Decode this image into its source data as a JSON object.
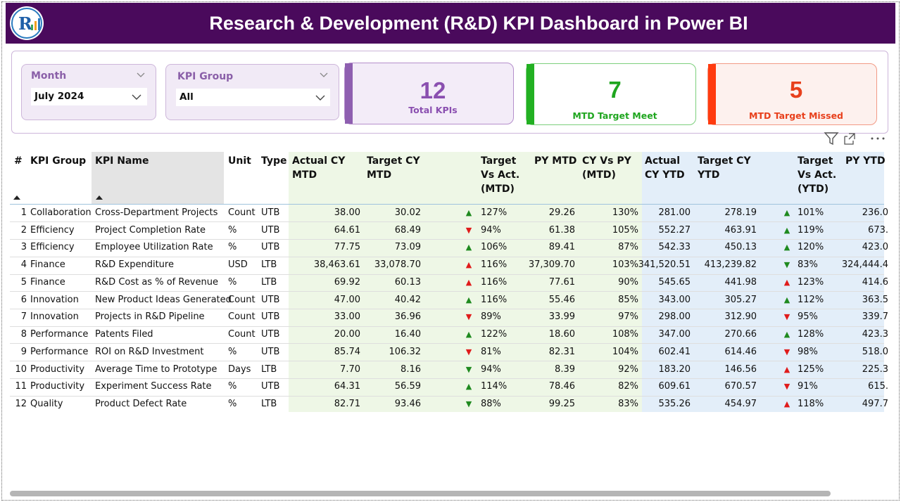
{
  "header": {
    "title": "Research & Development (R&D) KPI Dashboard in Power BI"
  },
  "filters": [
    {
      "label": "Month",
      "value": "July 2024"
    },
    {
      "label": "KPI Group",
      "value": "All"
    }
  ],
  "cards": [
    {
      "value": 12,
      "label": "Total KPIs",
      "color": "#8a4fb0",
      "bar": "#8e5fb0",
      "bg": "#f3ecf8",
      "border": "#b58fcc"
    },
    {
      "value": 7,
      "label": "MTD Target Meet",
      "color": "#1fa61f",
      "bar": "#22b022",
      "bg": "#ffffff",
      "border": "#7ccf7c"
    },
    {
      "value": 5,
      "label": "MTD Target Missed",
      "color": "#e8401c",
      "bar": "#ff3b0f",
      "bg": "#fdf1ee",
      "border": "#f29a85"
    }
  ],
  "table": {
    "columns": [
      "#",
      "KPI Group",
      "KPI Name",
      "Unit",
      "Type",
      "Actual CY MTD",
      "Target CY MTD",
      null,
      "Target Vs Act. (MTD)",
      "PY MTD",
      "CY Vs PY (MTD)",
      "Actual CY YTD",
      "Target CY YTD",
      null,
      "Target Vs Act. (YTD)",
      "PY YTD"
    ],
    "rows": [
      {
        "cells": [
          "1",
          "Collaboration",
          "Cross-Department Projects",
          "Count",
          "UTB",
          "38.00",
          "30.02",
          "▲",
          "127%",
          "29.26",
          "130%",
          "281.00",
          "278.19",
          "▲",
          "101%",
          "236.0"
        ],
        "arrow_colors": [
          "#1f8a1f",
          "#1f8a1f"
        ]
      },
      {
        "cells": [
          "2",
          "Efficiency",
          "Project Completion Rate",
          "%",
          "UTB",
          "64.61",
          "68.49",
          "▼",
          "94%",
          "61.38",
          "105%",
          "552.27",
          "463.91",
          "▲",
          "119%",
          "673."
        ],
        "arrow_colors": [
          "#e01b1b",
          "#1f8a1f"
        ]
      },
      {
        "cells": [
          "3",
          "Efficiency",
          "Employee Utilization Rate",
          "%",
          "UTB",
          "77.75",
          "73.09",
          "▲",
          "106%",
          "89.41",
          "87%",
          "542.33",
          "450.13",
          "▲",
          "120%",
          "423.0"
        ],
        "arrow_colors": [
          "#1f8a1f",
          "#1f8a1f"
        ]
      },
      {
        "cells": [
          "4",
          "Finance",
          "R&D Expenditure",
          "USD",
          "LTB",
          "38,463.61",
          "33,078.70",
          "▲",
          "116%",
          "37,309.70",
          "103%",
          "341,520.51",
          "413,239.82",
          "▼",
          "83%",
          "324,444.4"
        ],
        "arrow_colors": [
          "#e01b1b",
          "#1f8a1f"
        ]
      },
      {
        "cells": [
          "5",
          "Finance",
          "R&D Cost as % of Revenue",
          "%",
          "LTB",
          "69.92",
          "60.13",
          "▲",
          "116%",
          "77.61",
          "90%",
          "545.65",
          "441.98",
          "▲",
          "123%",
          "414.6"
        ],
        "arrow_colors": [
          "#e01b1b",
          "#e01b1b"
        ]
      },
      {
        "cells": [
          "6",
          "Innovation",
          "New Product Ideas Generated",
          "Count",
          "UTB",
          "47.00",
          "40.42",
          "▲",
          "116%",
          "55.46",
          "85%",
          "343.00",
          "305.27",
          "▲",
          "112%",
          "363.5"
        ],
        "arrow_colors": [
          "#1f8a1f",
          "#1f8a1f"
        ]
      },
      {
        "cells": [
          "7",
          "Innovation",
          "Projects in R&D Pipeline",
          "Count",
          "UTB",
          "33.00",
          "36.96",
          "▼",
          "89%",
          "33.99",
          "97%",
          "298.00",
          "312.90",
          "▼",
          "95%",
          "339.7"
        ],
        "arrow_colors": [
          "#e01b1b",
          "#e01b1b"
        ]
      },
      {
        "cells": [
          "8",
          "Performance",
          "Patents Filed",
          "Count",
          "UTB",
          "20.00",
          "16.40",
          "▲",
          "122%",
          "18.60",
          "108%",
          "347.00",
          "270.66",
          "▲",
          "128%",
          "423.3"
        ],
        "arrow_colors": [
          "#1f8a1f",
          "#1f8a1f"
        ]
      },
      {
        "cells": [
          "9",
          "Performance",
          "ROI on R&D Investment",
          "%",
          "UTB",
          "85.74",
          "106.32",
          "▼",
          "81%",
          "82.31",
          "104%",
          "602.41",
          "614.46",
          "▼",
          "98%",
          "518.0"
        ],
        "arrow_colors": [
          "#e01b1b",
          "#e01b1b"
        ]
      },
      {
        "cells": [
          "10",
          "Productivity",
          "Average Time to Prototype",
          "Days",
          "LTB",
          "7.70",
          "8.16",
          "▼",
          "94%",
          "8.39",
          "92%",
          "183.20",
          "146.56",
          "▲",
          "125%",
          "225.3"
        ],
        "arrow_colors": [
          "#1f8a1f",
          "#e01b1b"
        ]
      },
      {
        "cells": [
          "11",
          "Productivity",
          "Experiment Success Rate",
          "%",
          "UTB",
          "64.31",
          "56.59",
          "▲",
          "114%",
          "78.46",
          "82%",
          "609.61",
          "670.57",
          "▼",
          "91%",
          "615."
        ],
        "arrow_colors": [
          "#1f8a1f",
          "#e01b1b"
        ]
      },
      {
        "cells": [
          "12",
          "Quality",
          "Product Defect Rate",
          "%",
          "LTB",
          "82.71",
          "93.46",
          "▼",
          "88%",
          "99.25",
          "83%",
          "535.26",
          "454.97",
          "▲",
          "118%",
          "497.7"
        ],
        "arrow_colors": [
          "#1f8a1f",
          "#e01b1b"
        ]
      }
    ]
  }
}
